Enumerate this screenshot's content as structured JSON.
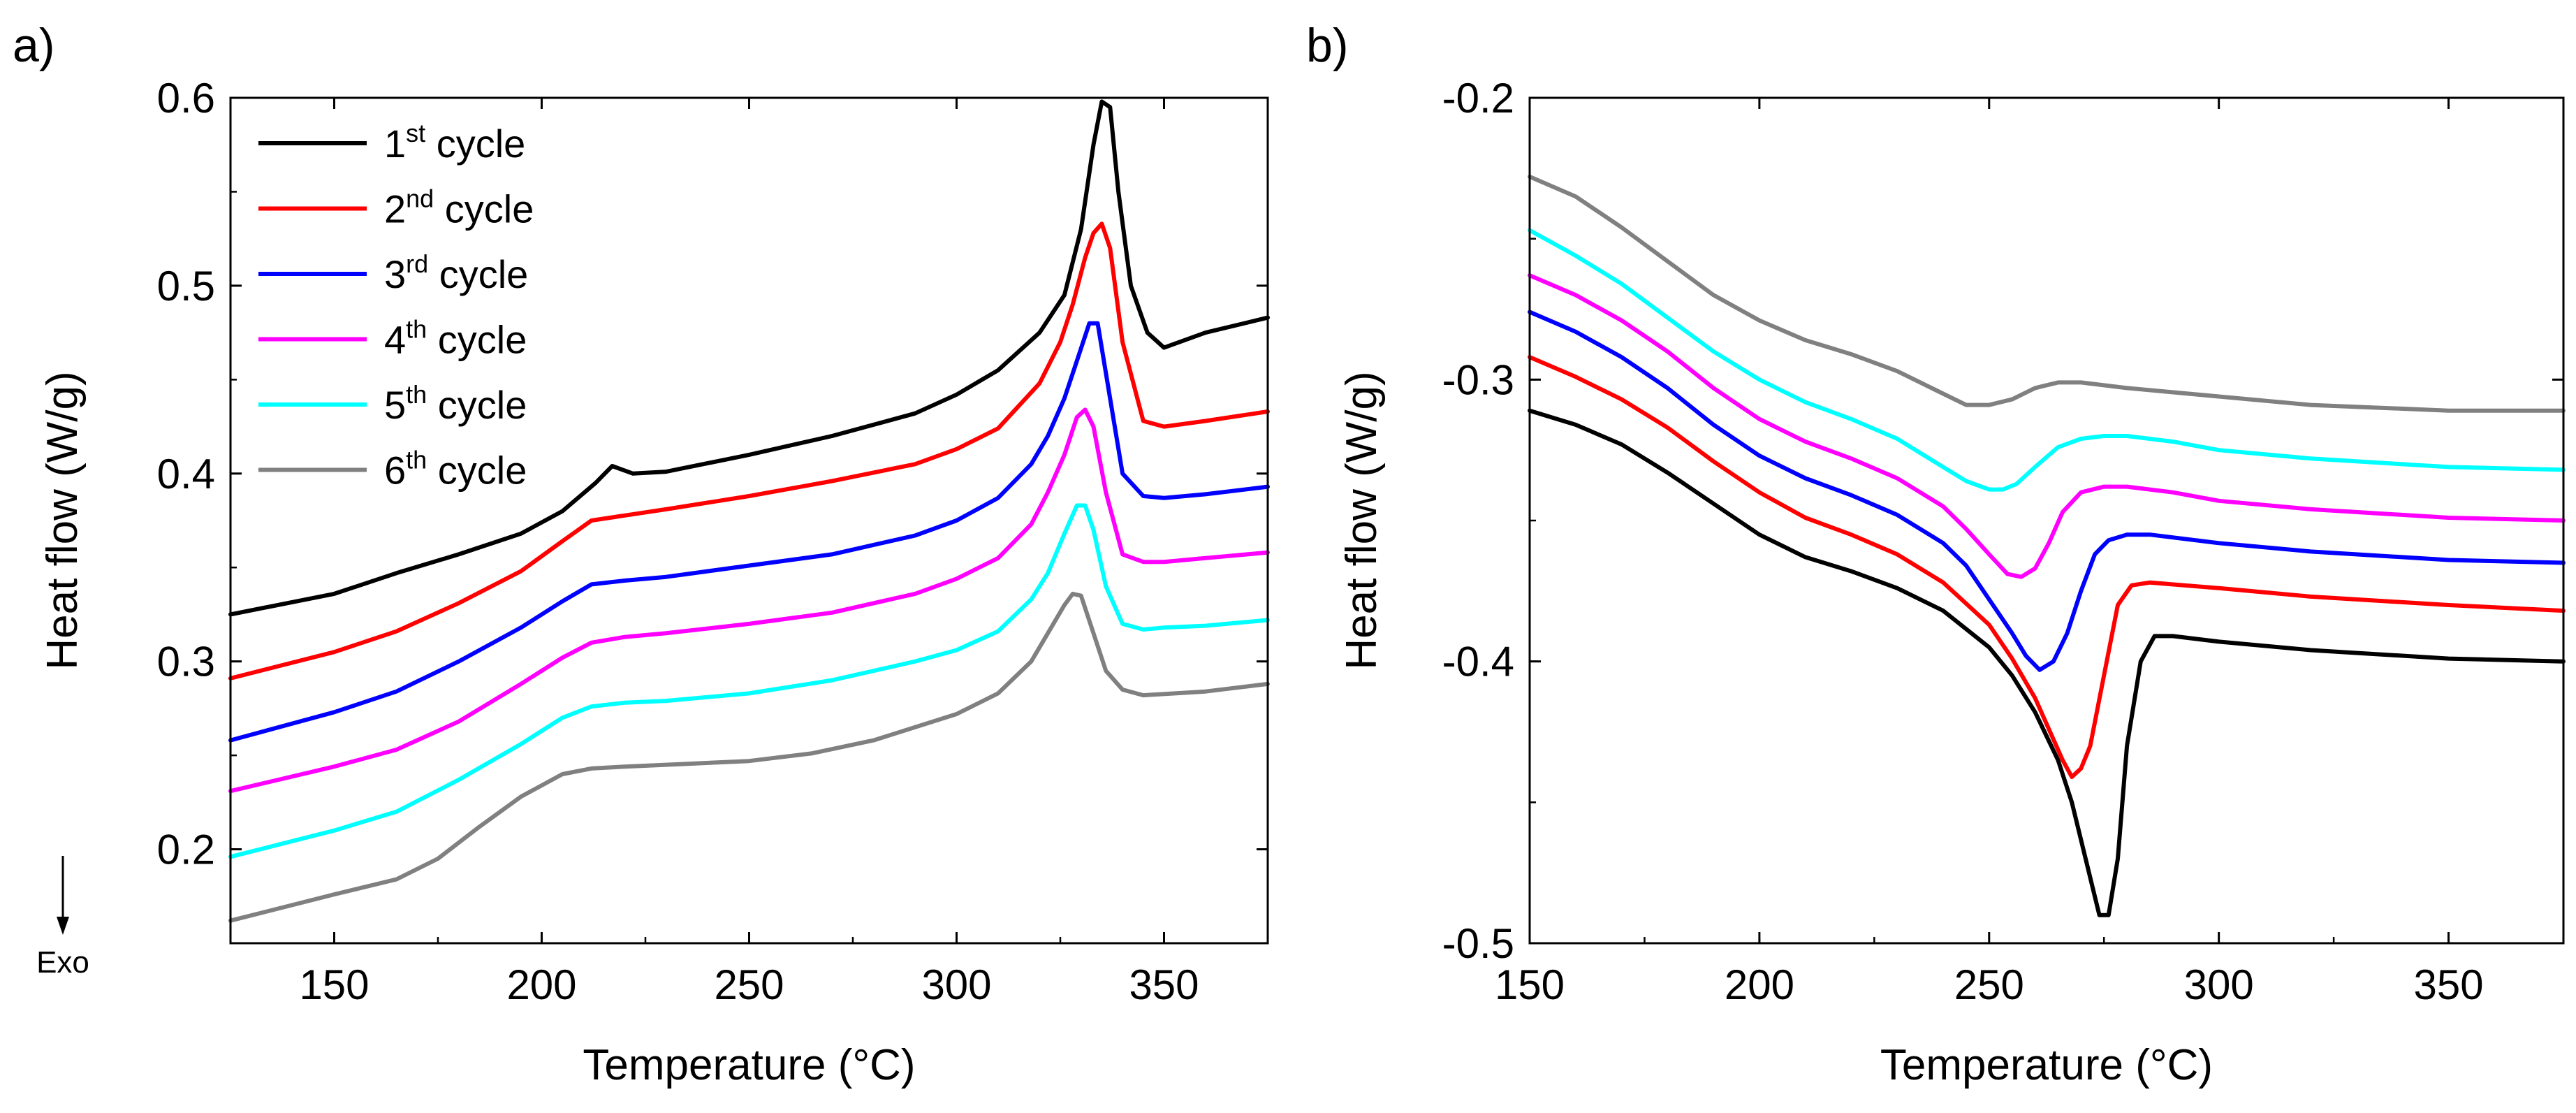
{
  "chart_data": [
    {
      "type": "line",
      "panel_label": "a)",
      "xlabel": "Temperature (°C)",
      "ylabel": "Heat flow (W/g)",
      "xlim": [
        125,
        375
      ],
      "ylim": [
        0.15,
        0.6
      ],
      "xticks": [
        150,
        200,
        250,
        300,
        350
      ],
      "yticks": [
        0.2,
        0.3,
        0.4,
        0.5,
        0.6
      ],
      "xtick_labels": [
        "150",
        "200",
        "250",
        "300",
        "350"
      ],
      "ytick_labels": [
        "0.2",
        "0.3",
        "0.4",
        "0.5",
        "0.6"
      ],
      "annotation": "Exo",
      "legend_position": "top-left",
      "series": [
        {
          "name": "1st cycle",
          "num": "1",
          "sup": "st",
          "label": "cycle",
          "color": "#000000",
          "x": [
            125,
            150,
            165,
            180,
            195,
            205,
            213,
            217,
            222,
            230,
            250,
            270,
            290,
            300,
            310,
            320,
            326,
            330,
            333,
            335,
            337,
            339,
            342,
            346,
            350,
            360,
            375
          ],
          "y": [
            0.325,
            0.336,
            0.347,
            0.357,
            0.368,
            0.38,
            0.395,
            0.404,
            0.4,
            0.401,
            0.41,
            0.42,
            0.432,
            0.442,
            0.455,
            0.475,
            0.495,
            0.53,
            0.575,
            0.598,
            0.595,
            0.55,
            0.5,
            0.475,
            0.467,
            0.475,
            0.483
          ]
        },
        {
          "name": "2nd cycle",
          "num": "2",
          "sup": "nd",
          "label": "cycle",
          "color": "#ff0000",
          "x": [
            125,
            150,
            165,
            180,
            195,
            205,
            212,
            218,
            230,
            250,
            270,
            290,
            300,
            310,
            320,
            325,
            328,
            331,
            333,
            335,
            337,
            340,
            345,
            350,
            360,
            375
          ],
          "y": [
            0.291,
            0.305,
            0.316,
            0.331,
            0.348,
            0.364,
            0.375,
            0.377,
            0.381,
            0.388,
            0.396,
            0.405,
            0.413,
            0.424,
            0.448,
            0.47,
            0.49,
            0.515,
            0.528,
            0.533,
            0.52,
            0.47,
            0.428,
            0.425,
            0.428,
            0.433
          ]
        },
        {
          "name": "3rd cycle",
          "num": "3",
          "sup": "rd",
          "label": "cycle",
          "color": "#0000ff",
          "x": [
            125,
            150,
            165,
            180,
            195,
            205,
            212,
            220,
            230,
            250,
            270,
            290,
            300,
            310,
            318,
            322,
            326,
            329,
            332,
            334,
            337,
            340,
            345,
            350,
            360,
            375
          ],
          "y": [
            0.258,
            0.273,
            0.284,
            0.3,
            0.318,
            0.332,
            0.341,
            0.343,
            0.345,
            0.351,
            0.357,
            0.367,
            0.375,
            0.387,
            0.405,
            0.42,
            0.44,
            0.46,
            0.48,
            0.48,
            0.44,
            0.4,
            0.388,
            0.387,
            0.389,
            0.393
          ]
        },
        {
          "name": "4th cycle",
          "num": "4",
          "sup": "th",
          "label": "cycle",
          "color": "#ff00ff",
          "x": [
            125,
            150,
            165,
            180,
            195,
            205,
            212,
            220,
            230,
            250,
            270,
            290,
            300,
            310,
            318,
            322,
            326,
            329,
            331,
            333,
            336,
            340,
            345,
            350,
            360,
            375
          ],
          "y": [
            0.231,
            0.244,
            0.253,
            0.268,
            0.288,
            0.302,
            0.31,
            0.313,
            0.315,
            0.32,
            0.326,
            0.336,
            0.344,
            0.355,
            0.373,
            0.39,
            0.41,
            0.43,
            0.434,
            0.425,
            0.39,
            0.357,
            0.353,
            0.353,
            0.355,
            0.358
          ]
        },
        {
          "name": "5th cycle",
          "num": "5",
          "sup": "th",
          "label": "cycle",
          "color": "#00ffff",
          "x": [
            125,
            150,
            165,
            180,
            195,
            205,
            212,
            220,
            230,
            250,
            270,
            290,
            300,
            310,
            318,
            322,
            326,
            329,
            331,
            333,
            336,
            340,
            345,
            350,
            360,
            375
          ],
          "y": [
            0.196,
            0.21,
            0.22,
            0.237,
            0.256,
            0.27,
            0.276,
            0.278,
            0.279,
            0.283,
            0.29,
            0.3,
            0.306,
            0.316,
            0.333,
            0.347,
            0.368,
            0.383,
            0.383,
            0.37,
            0.34,
            0.32,
            0.317,
            0.318,
            0.319,
            0.322
          ]
        },
        {
          "name": "6th cycle",
          "num": "6",
          "sup": "th",
          "label": "cycle",
          "color": "#808080",
          "x": [
            125,
            150,
            165,
            175,
            185,
            195,
            205,
            212,
            220,
            230,
            250,
            265,
            280,
            300,
            310,
            318,
            322,
            326,
            328,
            330,
            333,
            336,
            340,
            345,
            360,
            375
          ],
          "y": [
            0.162,
            0.176,
            0.184,
            0.195,
            0.212,
            0.228,
            0.24,
            0.243,
            0.244,
            0.245,
            0.247,
            0.251,
            0.258,
            0.272,
            0.283,
            0.3,
            0.315,
            0.33,
            0.336,
            0.335,
            0.315,
            0.295,
            0.285,
            0.282,
            0.284,
            0.288
          ]
        }
      ]
    },
    {
      "type": "line",
      "panel_label": "b)",
      "xlabel": "Temperature (°C)",
      "ylabel": "Heat flow (W/g)",
      "xlim": [
        150,
        375
      ],
      "ylim": [
        -0.5,
        -0.2
      ],
      "xticks": [
        150,
        200,
        250,
        300,
        350
      ],
      "yticks": [
        -0.5,
        -0.4,
        -0.3,
        -0.2
      ],
      "xtick_labels": [
        "150",
        "200",
        "250",
        "300",
        "350"
      ],
      "ytick_labels": [
        "-0.5",
        "-0.4",
        "-0.3",
        "-0.2"
      ],
      "series": [
        {
          "name": "1st cycle",
          "color": "#000000",
          "x": [
            150,
            160,
            170,
            180,
            190,
            200,
            210,
            220,
            230,
            240,
            250,
            255,
            260,
            265,
            268,
            271,
            274,
            276,
            278,
            280,
            283,
            286,
            290,
            300,
            320,
            350,
            375
          ],
          "y": [
            -0.311,
            -0.316,
            -0.323,
            -0.333,
            -0.344,
            -0.355,
            -0.363,
            -0.368,
            -0.374,
            -0.382,
            -0.395,
            -0.405,
            -0.418,
            -0.435,
            -0.45,
            -0.47,
            -0.49,
            -0.49,
            -0.47,
            -0.43,
            -0.4,
            -0.391,
            -0.391,
            -0.393,
            -0.396,
            -0.399,
            -0.4
          ]
        },
        {
          "name": "2nd cycle",
          "color": "#ff0000",
          "x": [
            150,
            160,
            170,
            180,
            190,
            200,
            210,
            220,
            230,
            240,
            250,
            255,
            260,
            263,
            266,
            268,
            270,
            272,
            275,
            278,
            281,
            285,
            300,
            320,
            350,
            375
          ],
          "y": [
            -0.292,
            -0.299,
            -0.307,
            -0.317,
            -0.329,
            -0.34,
            -0.349,
            -0.355,
            -0.362,
            -0.372,
            -0.387,
            -0.399,
            -0.413,
            -0.424,
            -0.435,
            -0.441,
            -0.438,
            -0.43,
            -0.405,
            -0.38,
            -0.373,
            -0.372,
            -0.374,
            -0.377,
            -0.38,
            -0.382
          ]
        },
        {
          "name": "3rd cycle",
          "color": "#0000ff",
          "x": [
            150,
            160,
            170,
            180,
            190,
            200,
            210,
            220,
            230,
            240,
            245,
            250,
            255,
            258,
            261,
            264,
            267,
            270,
            273,
            276,
            280,
            285,
            300,
            320,
            350,
            375
          ],
          "y": [
            -0.276,
            -0.283,
            -0.292,
            -0.303,
            -0.316,
            -0.327,
            -0.335,
            -0.341,
            -0.348,
            -0.358,
            -0.366,
            -0.378,
            -0.39,
            -0.398,
            -0.403,
            -0.4,
            -0.39,
            -0.375,
            -0.362,
            -0.357,
            -0.355,
            -0.355,
            -0.358,
            -0.361,
            -0.364,
            -0.365
          ]
        },
        {
          "name": "4th cycle",
          "color": "#ff00ff",
          "x": [
            150,
            160,
            170,
            180,
            190,
            200,
            210,
            220,
            230,
            240,
            245,
            250,
            254,
            257,
            260,
            263,
            266,
            270,
            275,
            280,
            290,
            300,
            320,
            350,
            375
          ],
          "y": [
            -0.263,
            -0.27,
            -0.279,
            -0.29,
            -0.303,
            -0.314,
            -0.322,
            -0.328,
            -0.335,
            -0.345,
            -0.353,
            -0.362,
            -0.369,
            -0.37,
            -0.367,
            -0.358,
            -0.347,
            -0.34,
            -0.338,
            -0.338,
            -0.34,
            -0.343,
            -0.346,
            -0.349,
            -0.35
          ]
        },
        {
          "name": "5th cycle",
          "color": "#00ffff",
          "x": [
            150,
            160,
            170,
            180,
            190,
            200,
            210,
            220,
            230,
            240,
            245,
            250,
            253,
            256,
            260,
            265,
            270,
            275,
            280,
            290,
            300,
            320,
            350,
            375
          ],
          "y": [
            -0.247,
            -0.256,
            -0.266,
            -0.278,
            -0.29,
            -0.3,
            -0.308,
            -0.314,
            -0.321,
            -0.331,
            -0.336,
            -0.339,
            -0.339,
            -0.337,
            -0.331,
            -0.324,
            -0.321,
            -0.32,
            -0.32,
            -0.322,
            -0.325,
            -0.328,
            -0.331,
            -0.332
          ]
        },
        {
          "name": "6th cycle",
          "color": "#808080",
          "x": [
            150,
            160,
            170,
            180,
            190,
            200,
            210,
            220,
            230,
            240,
            245,
            250,
            255,
            260,
            265,
            270,
            280,
            300,
            320,
            350,
            375
          ],
          "y": [
            -0.228,
            -0.235,
            -0.246,
            -0.258,
            -0.27,
            -0.279,
            -0.286,
            -0.291,
            -0.297,
            -0.305,
            -0.309,
            -0.309,
            -0.307,
            -0.303,
            -0.301,
            -0.301,
            -0.303,
            -0.306,
            -0.309,
            -0.311,
            -0.311
          ]
        }
      ]
    }
  ]
}
